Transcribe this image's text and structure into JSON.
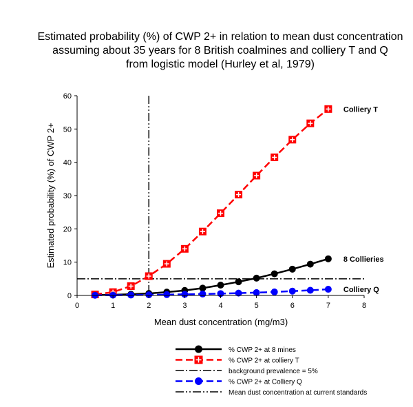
{
  "chart_data": {
    "type": "line",
    "title": [
      "Estimated probability (%) of CWP 2+ in relation to mean dust concentration",
      "assuming about 35 years for 8 British coalmines  and colliery T and Q",
      "from logistic model (Hurley et al, 1979)"
    ],
    "xlabel": "Mean dust concentration (mg/m3)",
    "ylabel": "Estimated probability (%) of CWP 2+",
    "xlim": [
      0,
      8
    ],
    "ylim": [
      0,
      60
    ],
    "x_ticks": [
      "0",
      "1",
      "2",
      "3",
      "4",
      "5",
      "6",
      "7",
      "8"
    ],
    "y_ticks": [
      "0",
      "10",
      "20",
      "30",
      "40",
      "50",
      "60"
    ],
    "x": [
      0.5,
      1,
      1.5,
      2,
      2.5,
      3,
      3.5,
      4,
      4.5,
      5,
      5.5,
      6,
      6.5,
      7
    ],
    "series": [
      {
        "name": "% CWP 2+ at 8 mines",
        "label": "8 Collieries",
        "values": [
          0.1,
          0.2,
          0.35,
          0.6,
          1.0,
          1.5,
          2.2,
          3.1,
          4.1,
          5.2,
          6.5,
          7.9,
          9.4,
          11.0
        ],
        "color": "#000000",
        "style": "solid",
        "marker": "circle"
      },
      {
        "name": "% CWP 2+ at colliery T",
        "label": "Colliery T",
        "values": [
          0.3,
          1.0,
          2.8,
          5.8,
          9.5,
          14.0,
          19.2,
          24.7,
          30.3,
          36.0,
          41.5,
          46.8,
          51.7,
          56.0
        ],
        "color": "#ff0000",
        "style": "dashed",
        "marker": "square-cross"
      },
      {
        "name": "% CWP 2+ at Colliery Q",
        "label": "Colliery Q",
        "values": [
          0.05,
          0.08,
          0.12,
          0.18,
          0.25,
          0.33,
          0.43,
          0.55,
          0.7,
          0.85,
          1.05,
          1.3,
          1.55,
          1.85
        ],
        "color": "#0000ff",
        "style": "dashed",
        "marker": "circle"
      }
    ],
    "reference_lines": [
      {
        "name": "background prevalence = 5%",
        "orientation": "horizontal",
        "value": 5,
        "color": "#000000",
        "style": "dash-dot"
      },
      {
        "name": "Mean dust concentration at current standards",
        "orientation": "vertical",
        "value": 2,
        "color": "#000000",
        "style": "dash-dot-dot"
      }
    ],
    "legend": [
      {
        "label": "% CWP 2+ at 8 mines",
        "color": "#000000",
        "style": "solid",
        "marker": "circle"
      },
      {
        "label": "% CWP 2+ at colliery T",
        "color": "#ff0000",
        "style": "dashed",
        "marker": "square-cross"
      },
      {
        "label": "background prevalence = 5%",
        "color": "#000000",
        "style": "dash-dot",
        "marker": "none"
      },
      {
        "label": "% CWP 2+ at Colliery Q",
        "color": "#0000ff",
        "style": "dashed",
        "marker": "circle"
      },
      {
        "label": "Mean dust concentration at current standards",
        "color": "#000000",
        "style": "dash-dot-dot",
        "marker": "none"
      }
    ],
    "legend_position": "bottom",
    "grid": false
  }
}
